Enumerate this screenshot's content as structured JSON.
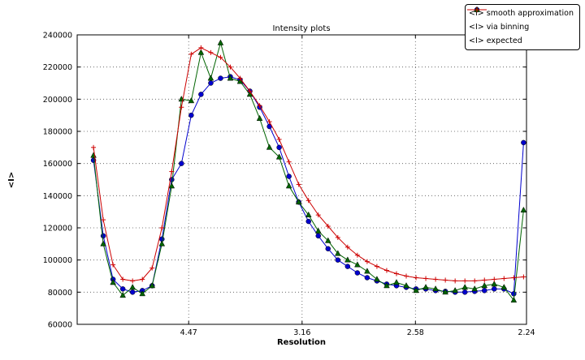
{
  "chart_data": {
    "type": "line",
    "title": "Intensity plots",
    "xlabel": "Resolution",
    "ylabel": "<I>",
    "grid": true,
    "legend_position": "top-right",
    "x_scale": "1/d^2 (resolution in angstrom, reciprocal-square spacing)",
    "x_range": [
      0.0008,
      0.1993
    ],
    "y_range": [
      60000,
      240000
    ],
    "x_ticks": {
      "values": [
        0.05005,
        0.10016,
        0.15023,
        0.1993
      ],
      "labels": [
        "4.47",
        "3.16",
        "2.58",
        "2.24"
      ]
    },
    "y_ticks": {
      "values": [
        60000,
        80000,
        100000,
        120000,
        140000,
        160000,
        180000,
        200000,
        220000,
        240000
      ],
      "labels": [
        "60000",
        "80000",
        "100000",
        "120000",
        "140000",
        "160000",
        "180000",
        "200000",
        "220000",
        "240000"
      ]
    },
    "x": [
      0.008,
      0.01232,
      0.01664,
      0.02096,
      0.02527,
      0.02959,
      0.03391,
      0.03823,
      0.04255,
      0.04686,
      0.05118,
      0.0555,
      0.05982,
      0.06414,
      0.06845,
      0.07277,
      0.07709,
      0.08141,
      0.08573,
      0.09004,
      0.09436,
      0.09868,
      0.103,
      0.10732,
      0.11163,
      0.11595,
      0.12027,
      0.12459,
      0.12891,
      0.13322,
      0.13754,
      0.14186,
      0.14618,
      0.1505,
      0.15481,
      0.15913,
      0.16345,
      0.16777,
      0.17209,
      0.1764,
      0.18072,
      0.18504,
      0.18936,
      0.19368,
      0.198
    ],
    "series": [
      {
        "name": "<I> smooth approximation",
        "color": "#0000cd",
        "marker": "circle",
        "values": [
          162000,
          115000,
          88000,
          82000,
          80000,
          81000,
          84000,
          113000,
          150000,
          160000,
          190000,
          203000,
          210000,
          213000,
          214000,
          212000,
          205000,
          195000,
          183000,
          170000,
          152000,
          136000,
          124000,
          115000,
          107000,
          100000,
          96000,
          92000,
          89000,
          87000,
          85000,
          84000,
          83000,
          82000,
          82000,
          81000,
          80500,
          80000,
          80000,
          80500,
          81000,
          82000,
          82000,
          79000,
          173000
        ]
      },
      {
        "name": "<I> via binning",
        "color": "#006400",
        "marker": "triangle",
        "values": [
          165000,
          110000,
          86000,
          78000,
          83000,
          79000,
          84000,
          110000,
          146000,
          200000,
          199000,
          229000,
          213000,
          235000,
          213000,
          211000,
          203000,
          188000,
          170000,
          164000,
          146000,
          136000,
          128000,
          118000,
          112000,
          104000,
          100000,
          97000,
          93000,
          88000,
          84000,
          86000,
          84000,
          81000,
          83000,
          82000,
          80000,
          81000,
          83000,
          82000,
          84000,
          85000,
          83000,
          75000,
          131000
        ]
      },
      {
        "name": "<I> expected",
        "color": "#cd0000",
        "marker": "plus",
        "values": [
          170000,
          125000,
          97000,
          88000,
          87000,
          88000,
          95000,
          120000,
          155000,
          195000,
          228000,
          232000,
          229000,
          226000,
          220000,
          213000,
          205000,
          196000,
          186000,
          175000,
          161000,
          147000,
          137000,
          128000,
          121000,
          114000,
          108000,
          103000,
          99000,
          96000,
          93500,
          91500,
          90000,
          89000,
          88500,
          88000,
          87500,
          87000,
          87000,
          87000,
          87500,
          88000,
          88500,
          89000,
          89500
        ]
      }
    ]
  }
}
